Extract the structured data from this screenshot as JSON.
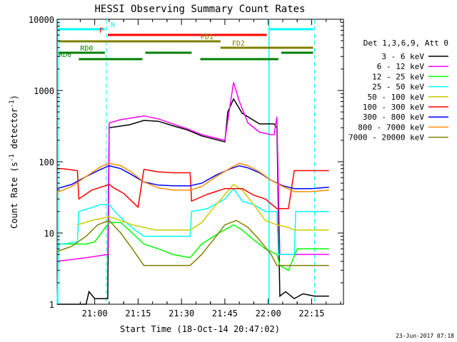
{
  "chart_data": {
    "type": "line",
    "title": "HESSI Observing Summary Count Rates",
    "xlabel": "Start Time (18-Oct-14 20:47:02)",
    "ylabel_main": "Count Rate (s",
    "ylabel_sup1": "-1",
    "ylabel_mid": " detector",
    "ylabel_sup2": "-1",
    "ylabel_end": ")",
    "y_scale": "log",
    "ylim": [
      1,
      10000
    ],
    "xlim_minutes": [
      0,
      99
    ],
    "x_ticks": [
      {
        "label": "21:00",
        "t": 13
      },
      {
        "label": "21:15",
        "t": 28
      },
      {
        "label": "21:30",
        "t": 43
      },
      {
        "label": "21:45",
        "t": 58
      },
      {
        "label": "22:00",
        "t": 73
      },
      {
        "label": "22:15",
        "t": 88
      }
    ],
    "y_ticks": [
      {
        "label": "1",
        "v": 1
      },
      {
        "label": "10",
        "v": 10
      },
      {
        "label": "100",
        "v": 100
      },
      {
        "label": "1000",
        "v": 1000
      },
      {
        "label": "10000",
        "v": 10000
      }
    ],
    "legend_header": "Det 1,3,6,9, Att 0",
    "legend_position": "right",
    "series": [
      {
        "name": "3 - 6 keV",
        "color": "#000000",
        "points": [
          [
            0,
            1
          ],
          [
            10,
            1
          ],
          [
            11,
            1.5
          ],
          [
            13,
            1.2
          ],
          [
            17.5,
            1.2
          ],
          [
            18,
            300
          ],
          [
            25,
            330
          ],
          [
            30,
            380
          ],
          [
            35,
            370
          ],
          [
            40,
            320
          ],
          [
            45,
            280
          ],
          [
            50,
            230
          ],
          [
            58,
            190
          ],
          [
            59,
            500
          ],
          [
            61,
            760
          ],
          [
            64,
            480
          ],
          [
            68,
            380
          ],
          [
            70,
            340
          ],
          [
            75,
            340
          ],
          [
            76,
            300
          ],
          [
            77,
            1.3
          ],
          [
            79,
            1.5
          ],
          [
            82,
            1.2
          ],
          [
            85,
            1.4
          ],
          [
            89,
            1.3
          ],
          [
            94,
            1.3
          ]
        ]
      },
      {
        "name": "6 - 12 keV",
        "color": "#ff00ff",
        "points": [
          [
            0,
            4
          ],
          [
            10,
            4.5
          ],
          [
            17.5,
            5
          ],
          [
            18,
            350
          ],
          [
            22,
            390
          ],
          [
            30,
            440
          ],
          [
            35,
            400
          ],
          [
            40,
            340
          ],
          [
            45,
            290
          ],
          [
            50,
            240
          ],
          [
            58,
            200
          ],
          [
            60,
            700
          ],
          [
            61,
            1300
          ],
          [
            63,
            700
          ],
          [
            66,
            350
          ],
          [
            70,
            260
          ],
          [
            74,
            240
          ],
          [
            75,
            240
          ],
          [
            76,
            430
          ],
          [
            77,
            5
          ],
          [
            82,
            5
          ],
          [
            89,
            5
          ],
          [
            94,
            5
          ]
        ]
      },
      {
        "name": "12 - 25 keV",
        "color": "#00ff00",
        "points": [
          [
            0,
            7
          ],
          [
            7,
            7
          ],
          [
            10,
            7
          ],
          [
            13,
            7.5
          ],
          [
            16,
            11
          ],
          [
            18,
            14
          ],
          [
            22,
            14
          ],
          [
            26,
            10
          ],
          [
            30,
            7
          ],
          [
            35,
            6
          ],
          [
            40,
            5
          ],
          [
            46,
            4.5
          ],
          [
            50,
            7
          ],
          [
            56,
            10
          ],
          [
            61,
            13
          ],
          [
            64,
            11
          ],
          [
            68,
            8
          ],
          [
            72,
            6
          ],
          [
            76,
            5
          ],
          [
            77,
            3.5
          ],
          [
            80,
            3
          ],
          [
            83,
            6
          ],
          [
            89,
            6
          ],
          [
            94,
            6
          ]
        ]
      },
      {
        "name": "25 - 50 keV",
        "color": "#00ffff",
        "points": [
          [
            0,
            1
          ],
          [
            0.5,
            7
          ],
          [
            2,
            7
          ],
          [
            7,
            7.5
          ],
          [
            7.5,
            20
          ],
          [
            15,
            25
          ],
          [
            18,
            25
          ],
          [
            20,
            20
          ],
          [
            23,
            15
          ],
          [
            27,
            11
          ],
          [
            30,
            9
          ],
          [
            34,
            9
          ],
          [
            40,
            9
          ],
          [
            46,
            9
          ],
          [
            46.5,
            20
          ],
          [
            52,
            22
          ],
          [
            58,
            30
          ],
          [
            61,
            42
          ],
          [
            64,
            28
          ],
          [
            68,
            25
          ],
          [
            72,
            20
          ],
          [
            76,
            20
          ],
          [
            76.5,
            5
          ],
          [
            78,
            5
          ],
          [
            82,
            5
          ],
          [
            82.5,
            20
          ],
          [
            88,
            20
          ],
          [
            94,
            20
          ]
        ]
      },
      {
        "name": "50 - 100 keV",
        "color": "#cccc00",
        "points": [
          [
            7,
            13
          ],
          [
            12,
            15
          ],
          [
            18,
            17
          ],
          [
            22,
            15
          ],
          [
            26,
            13
          ],
          [
            30,
            12
          ],
          [
            34,
            11
          ],
          [
            40,
            11
          ],
          [
            46,
            11
          ],
          [
            50,
            14
          ],
          [
            55,
            25
          ],
          [
            61,
            48
          ],
          [
            64,
            40
          ],
          [
            68,
            25
          ],
          [
            72,
            15
          ],
          [
            76,
            13
          ],
          [
            80,
            12
          ],
          [
            82,
            11
          ],
          [
            88,
            11
          ],
          [
            94,
            11
          ]
        ]
      },
      {
        "name": "100 - 300 keV",
        "color": "#ff0000",
        "points": [
          [
            0,
            80
          ],
          [
            2,
            80
          ],
          [
            7,
            75
          ],
          [
            7.5,
            30
          ],
          [
            12,
            40
          ],
          [
            18,
            48
          ],
          [
            20,
            42
          ],
          [
            23,
            36
          ],
          [
            25,
            30
          ],
          [
            28,
            23
          ],
          [
            30,
            78
          ],
          [
            35,
            72
          ],
          [
            40,
            70
          ],
          [
            46,
            70
          ],
          [
            46.5,
            28
          ],
          [
            52,
            35
          ],
          [
            58,
            42
          ],
          [
            64,
            42
          ],
          [
            68,
            34
          ],
          [
            72,
            30
          ],
          [
            76,
            22
          ],
          [
            80,
            22
          ],
          [
            82,
            75
          ],
          [
            88,
            75
          ],
          [
            94,
            75
          ]
        ]
      },
      {
        "name": "300 - 800 keV",
        "color": "#0000ff",
        "points": [
          [
            0,
            42
          ],
          [
            5,
            48
          ],
          [
            10,
            62
          ],
          [
            15,
            78
          ],
          [
            18,
            88
          ],
          [
            22,
            80
          ],
          [
            26,
            65
          ],
          [
            30,
            52
          ],
          [
            35,
            47
          ],
          [
            40,
            46
          ],
          [
            46,
            46
          ],
          [
            50,
            50
          ],
          [
            55,
            65
          ],
          [
            60,
            80
          ],
          [
            63,
            88
          ],
          [
            66,
            82
          ],
          [
            70,
            70
          ],
          [
            74,
            55
          ],
          [
            78,
            46
          ],
          [
            82,
            42
          ],
          [
            88,
            42
          ],
          [
            94,
            44
          ]
        ]
      },
      {
        "name": "800 - 7000 keV",
        "color": "#ff8c00",
        "points": [
          [
            0,
            37
          ],
          [
            5,
            45
          ],
          [
            10,
            62
          ],
          [
            15,
            85
          ],
          [
            18,
            95
          ],
          [
            22,
            88
          ],
          [
            26,
            70
          ],
          [
            30,
            52
          ],
          [
            35,
            43
          ],
          [
            40,
            40
          ],
          [
            46,
            40
          ],
          [
            50,
            45
          ],
          [
            55,
            62
          ],
          [
            60,
            82
          ],
          [
            63,
            95
          ],
          [
            66,
            88
          ],
          [
            70,
            72
          ],
          [
            74,
            55
          ],
          [
            78,
            45
          ],
          [
            82,
            38
          ],
          [
            88,
            38
          ],
          [
            94,
            40
          ]
        ]
      },
      {
        "name": "7000 - 20000 keV",
        "color": "#808000",
        "points": [
          [
            0,
            5.5
          ],
          [
            5,
            6.5
          ],
          [
            10,
            9
          ],
          [
            14,
            13
          ],
          [
            18,
            15
          ],
          [
            22,
            10
          ],
          [
            26,
            6
          ],
          [
            30,
            3.5
          ],
          [
            35,
            3.5
          ],
          [
            40,
            3.5
          ],
          [
            46,
            3.5
          ],
          [
            50,
            5
          ],
          [
            55,
            9
          ],
          [
            58,
            13
          ],
          [
            62,
            15
          ],
          [
            66,
            12
          ],
          [
            70,
            8
          ],
          [
            74,
            5
          ],
          [
            76,
            3.5
          ],
          [
            82,
            3.5
          ],
          [
            88,
            3.5
          ],
          [
            94,
            3.5
          ]
        ]
      }
    ],
    "flag_bars": [
      {
        "label": "N",
        "color": "#00ffff",
        "level": 1,
        "segments": [
          [
            0,
            17
          ],
          [
            73,
            89
          ]
        ]
      },
      {
        "label": "F",
        "color": "#ff0000",
        "level": 2,
        "segments": [
          [
            17,
            73
          ]
        ]
      },
      {
        "label": "FD1",
        "color": "#808000",
        "level": 3,
        "segments": [
          [
            0,
            57
          ]
        ]
      },
      {
        "label": "FD2",
        "color": "#808000",
        "level": 4,
        "segments": [
          [
            56,
            89
          ]
        ]
      },
      {
        "label": "RD0",
        "color": "#008000",
        "level": 5,
        "segments": [
          [
            0,
            17
          ],
          [
            30,
            47
          ],
          [
            77,
            89
          ]
        ]
      },
      {
        "label": "RD6",
        "color": "#008000",
        "level": 6,
        "segments": [
          [
            7,
            30
          ],
          [
            49,
            77
          ]
        ]
      }
    ],
    "saa_lines": [
      17,
      89
    ],
    "night_lines": [
      0,
      73
    ],
    "timestamp": "23-Jun-2017 07:18"
  }
}
